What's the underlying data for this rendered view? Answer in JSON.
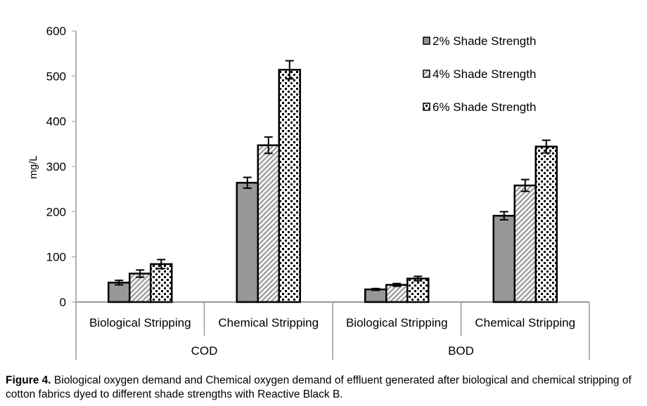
{
  "chart_data": {
    "type": "bar",
    "ylabel": "mg/L",
    "ylim": [
      0,
      600
    ],
    "yticks": [
      0,
      100,
      200,
      300,
      400,
      500,
      600
    ],
    "groups": [
      "COD",
      "BOD"
    ],
    "categories": [
      "Biological Stripping",
      "Chemical Stripping",
      "Biological Stripping",
      "Chemical Stripping"
    ],
    "category_groups": [
      "COD",
      "COD",
      "BOD",
      "BOD"
    ],
    "legend_position": "top-right",
    "grid": false,
    "series": [
      {
        "name": "2% Shade Strength",
        "fill": "#979797",
        "pattern": "solid",
        "values": [
          43,
          264,
          28,
          191
        ],
        "errors": [
          5,
          12,
          2,
          9
        ]
      },
      {
        "name": "4% Shade Strength",
        "fill": "#a0a0a0",
        "pattern": "diagonal",
        "values": [
          63,
          347,
          38,
          258
        ],
        "errors": [
          8,
          18,
          3,
          13
        ]
      },
      {
        "name": "6% Shade Strength",
        "fill": "#000000",
        "pattern": "dots",
        "values": [
          84,
          514,
          52,
          344
        ],
        "errors": [
          10,
          20,
          5,
          14
        ]
      }
    ]
  },
  "caption": {
    "label": "Figure 4.",
    "text": " Biological oxygen demand and Chemical oxygen demand of effluent generated after biological and chemical stripping of cotton fabrics dyed to different shade strengths with Reactive Black B."
  }
}
